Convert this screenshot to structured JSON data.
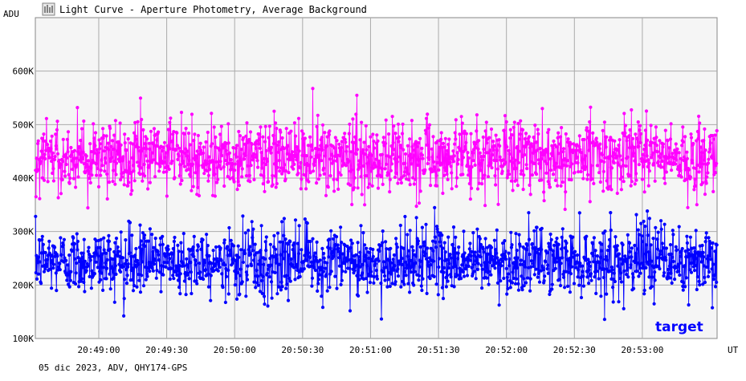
{
  "header": {
    "title": "Light Curve - Aperture Photometry, Average Background",
    "icon": "light-curve-icon"
  },
  "footer": {
    "info": "05 dic 2023, ADV, QHY174-GPS"
  },
  "colors": {
    "background": "#ffffff",
    "plot_background": "#f5f5f5",
    "grid": "#aaaaaa",
    "target": "#0000ff",
    "comparison": "#ff00ff",
    "text": "#000000"
  },
  "chart_data": {
    "type": "line",
    "title": "Light Curve - Aperture Photometry, Average Background",
    "ylabel": "ADU",
    "xlabel": "UT",
    "ylim": [
      100000,
      700000
    ],
    "xlim": [
      "20:48:32",
      "20:53:33"
    ],
    "y_ticks": [
      {
        "value": 100000,
        "label": "100K"
      },
      {
        "value": 200000,
        "label": "200K"
      },
      {
        "value": 300000,
        "label": "300K"
      },
      {
        "value": 400000,
        "label": "400K"
      },
      {
        "value": 500000,
        "label": "500K"
      },
      {
        "value": 600000,
        "label": "600K"
      }
    ],
    "x_ticks": [
      "20:49:00",
      "20:49:30",
      "20:50:00",
      "20:50:30",
      "20:51:00",
      "20:51:30",
      "20:52:00",
      "20:52:30",
      "20:53:00"
    ],
    "grid": true,
    "series": [
      {
        "name": "target",
        "color": "#0000ff",
        "mean": 245000,
        "spread": 40000,
        "min": 135000,
        "max": 345000,
        "points": 1500
      },
      {
        "name": "",
        "color": "#ff00ff",
        "mean": 440000,
        "spread": 45000,
        "min": 310000,
        "max": 600000,
        "points": 1500
      }
    ],
    "legend": {
      "placement": "bottom-right",
      "entries": [
        "target"
      ]
    }
  }
}
